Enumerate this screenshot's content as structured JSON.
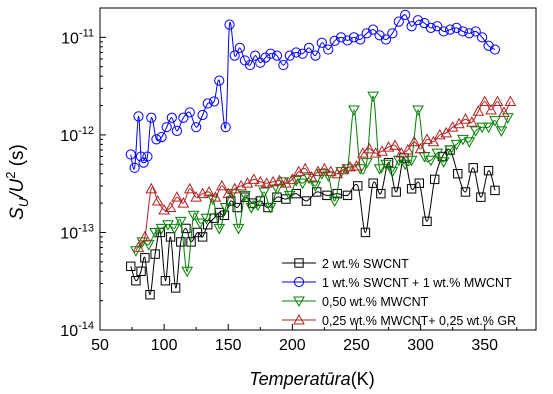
{
  "chart_data": {
    "type": "line",
    "xlabel": "Temperatūra",
    "xlabel_unit": "(K)",
    "ylabel_main": "S",
    "ylabel_sub": "U",
    "ylabel_mid": "/U",
    "ylabel_sup": "2",
    "ylabel_unit": " (s)",
    "xlim": [
      50,
      390
    ],
    "ylim": [
      1e-14,
      2e-11
    ],
    "yscale": "log",
    "x_ticks": [
      "50",
      "100",
      "150",
      "200",
      "250",
      "300",
      "350"
    ],
    "x_tick_values": [
      50,
      100,
      150,
      200,
      250,
      300,
      350
    ],
    "y_ticks": [
      {
        "value": 1e-14,
        "base": "10",
        "exp": "-14"
      },
      {
        "value": 1e-13,
        "base": "10",
        "exp": "-13"
      },
      {
        "value": 1e-12,
        "base": "10",
        "exp": "-12"
      },
      {
        "value": 1e-11,
        "base": "10",
        "exp": "-11"
      }
    ],
    "legend_position": "bottom-right",
    "series": [
      {
        "name": "2 wt.% SWCNT",
        "color": "#000000",
        "marker": "square",
        "x": [
          74,
          78,
          82,
          85,
          89,
          93,
          97,
          101,
          105,
          109,
          113,
          117,
          121,
          126,
          130,
          134,
          139,
          143,
          147,
          152,
          157,
          163,
          169,
          175,
          181,
          188,
          195,
          203,
          211,
          219,
          227,
          235,
          243,
          251,
          257,
          263,
          269,
          275,
          281,
          287,
          293,
          299,
          305,
          311,
          317,
          323,
          329,
          335,
          341,
          347,
          353,
          358
        ],
        "y": [
          4.5e-14,
          3.2e-14,
          4e-14,
          5.5e-14,
          2.3e-14,
          6e-14,
          1e-13,
          3.2e-14,
          9e-14,
          2.7e-14,
          8e-14,
          1.1e-13,
          8e-14,
          1e-13,
          9e-14,
          1.2e-13,
          1.4e-13,
          1.6e-13,
          1.5e-13,
          2.1e-13,
          1.8e-13,
          2.3e-13,
          2e-13,
          2.1e-13,
          1.8e-13,
          2.3e-13,
          2.2e-13,
          2.5e-13,
          2.1e-13,
          2.6e-13,
          2.4e-13,
          2.5e-13,
          2.4e-13,
          3e-13,
          1e-13,
          3.2e-13,
          2.5e-13,
          5.2e-13,
          2.6e-13,
          5.8e-13,
          2.8e-13,
          3.2e-13,
          1.3e-13,
          3.5e-13,
          6e-13,
          7e-13,
          4e-13,
          2.6e-13,
          4.6e-13,
          2.3e-13,
          4.3e-13,
          2.7e-13
        ]
      },
      {
        "name": "1 wt.% SWCNT + 1 wt.% MWCNT",
        "color": "#0000ff",
        "marker": "circle",
        "x": [
          74,
          77,
          80,
          82,
          84,
          87,
          90,
          94,
          98,
          102,
          106,
          110,
          115,
          120,
          125,
          130,
          134,
          139,
          143,
          148,
          151,
          155,
          159,
          163,
          167,
          171,
          175,
          179,
          183,
          188,
          193,
          198,
          203,
          208,
          213,
          218,
          223,
          228,
          233,
          238,
          243,
          248,
          253,
          258,
          263,
          268,
          273,
          278,
          283,
          288,
          293,
          298,
          303,
          308,
          313,
          318,
          323,
          328,
          333,
          338,
          343,
          348,
          353,
          358
        ],
        "y": [
          6.3e-13,
          4.6e-13,
          1.55e-12,
          6e-13,
          5.2e-13,
          6e-13,
          1.5e-12,
          9e-13,
          9.5e-13,
          1.2e-12,
          1.5e-12,
          1.1e-12,
          1.5e-12,
          1.7e-12,
          1.2e-12,
          1.6e-12,
          2.1e-12,
          2.2e-12,
          3.6e-12,
          1.2e-12,
          1.35e-11,
          6.5e-12,
          7.8e-12,
          5.8e-12,
          5.2e-12,
          6.5e-12,
          5.5e-12,
          6.2e-12,
          6.8e-12,
          6.5e-12,
          5.2e-12,
          6.5e-12,
          7e-12,
          6.8e-12,
          7.8e-12,
          6.5e-12,
          8.8e-12,
          7.5e-12,
          9.2e-12,
          1e-11,
          9.3e-12,
          1e-11,
          9.5e-12,
          1.1e-11,
          1.2e-11,
          1.05e-11,
          9.5e-12,
          1.1e-11,
          1.45e-11,
          1.7e-11,
          1.3e-11,
          1.5e-11,
          1.4e-11,
          1.25e-11,
          1.3e-11,
          1.15e-11,
          1.2e-11,
          1.25e-11,
          1.15e-11,
          1.1e-11,
          1.15e-11,
          1e-11,
          8.2e-12,
          7.5e-12
        ]
      },
      {
        "name": "0,50 wt.% MWCNT",
        "color": "#008000",
        "marker": "triangle-down",
        "x": [
          78,
          83,
          88,
          93,
          98,
          103,
          108,
          113,
          118,
          123,
          128,
          133,
          138,
          143,
          148,
          153,
          158,
          163,
          168,
          173,
          178,
          183,
          188,
          193,
          198,
          203,
          208,
          213,
          218,
          223,
          228,
          233,
          238,
          243,
          248,
          253,
          258,
          263,
          268,
          273,
          278,
          283,
          288,
          293,
          298,
          303,
          308,
          313,
          318,
          323,
          328,
          333,
          338,
          343,
          348,
          353,
          358,
          363,
          368
        ],
        "y": [
          6.5e-14,
          8e-14,
          7.5e-14,
          1e-13,
          1.1e-13,
          1.2e-13,
          1.1e-13,
          1.3e-13,
          4e-14,
          1.5e-13,
          1.25e-13,
          1.4e-13,
          2.2e-13,
          1.1e-13,
          1.8e-13,
          2.5e-13,
          1.1e-13,
          2.4e-13,
          1.8e-13,
          1.9e-13,
          2.6e-13,
          1.8e-13,
          2.8e-13,
          3.3e-13,
          2.4e-13,
          3.4e-13,
          3.2e-13,
          3.6e-13,
          3e-13,
          4e-13,
          3.8e-13,
          2.1e-13,
          4.2e-13,
          4.5e-13,
          1.8e-12,
          4.5e-13,
          5.2e-13,
          2.5e-12,
          4.5e-13,
          5e-13,
          4.2e-13,
          5.5e-13,
          5e-13,
          5.5e-13,
          1.8e-12,
          6e-13,
          5.5e-13,
          6.5e-13,
          5.3e-13,
          7e-13,
          8e-13,
          9e-13,
          8.5e-13,
          1.1e-12,
          1.2e-12,
          1.2e-12,
          1.4e-12,
          1.1e-12,
          1.5e-12
        ]
      },
      {
        "name": "0,25 wt.% MWCNT+ 0,25 wt.% GR",
        "color": "#b22222",
        "marker": "triangle-up",
        "x": [
          80,
          85,
          90,
          95,
          100,
          105,
          110,
          115,
          120,
          125,
          130,
          135,
          140,
          145,
          150,
          155,
          160,
          165,
          170,
          175,
          180,
          185,
          190,
          195,
          200,
          205,
          210,
          215,
          220,
          225,
          230,
          235,
          240,
          245,
          250,
          255,
          260,
          265,
          270,
          275,
          280,
          285,
          290,
          295,
          300,
          305,
          310,
          315,
          320,
          325,
          330,
          335,
          340,
          345,
          350,
          355,
          360,
          365,
          370
        ],
        "y": [
          7e-14,
          9e-14,
          2.8e-13,
          2.1e-13,
          1.7e-13,
          1.8e-13,
          2.3e-13,
          2e-13,
          2.8e-13,
          2.3e-13,
          2.5e-13,
          2.6e-13,
          2.3e-13,
          3e-13,
          2.5e-13,
          2.8e-13,
          3e-13,
          3.2e-13,
          3.5e-13,
          3.3e-13,
          3.2e-13,
          3.3e-13,
          3.4e-13,
          3.2e-13,
          3.5e-13,
          4.2e-13,
          4.5e-13,
          3.7e-13,
          4.2e-13,
          4.5e-13,
          4.2e-13,
          4e-13,
          4.4e-13,
          4.7e-13,
          4.8e-13,
          6.5e-13,
          7.2e-13,
          6.5e-13,
          6.8e-13,
          7.5e-13,
          7.8e-13,
          6.5e-13,
          7e-13,
          8.5e-13,
          7.2e-13,
          9e-13,
          8.5e-13,
          1e-12,
          1.05e-12,
          1.2e-12,
          1.3e-12,
          1.45e-12,
          1.35e-12,
          1.75e-12,
          2.2e-12,
          1.8e-12,
          2.2e-12,
          1.7e-12,
          2.2e-12
        ]
      }
    ]
  }
}
